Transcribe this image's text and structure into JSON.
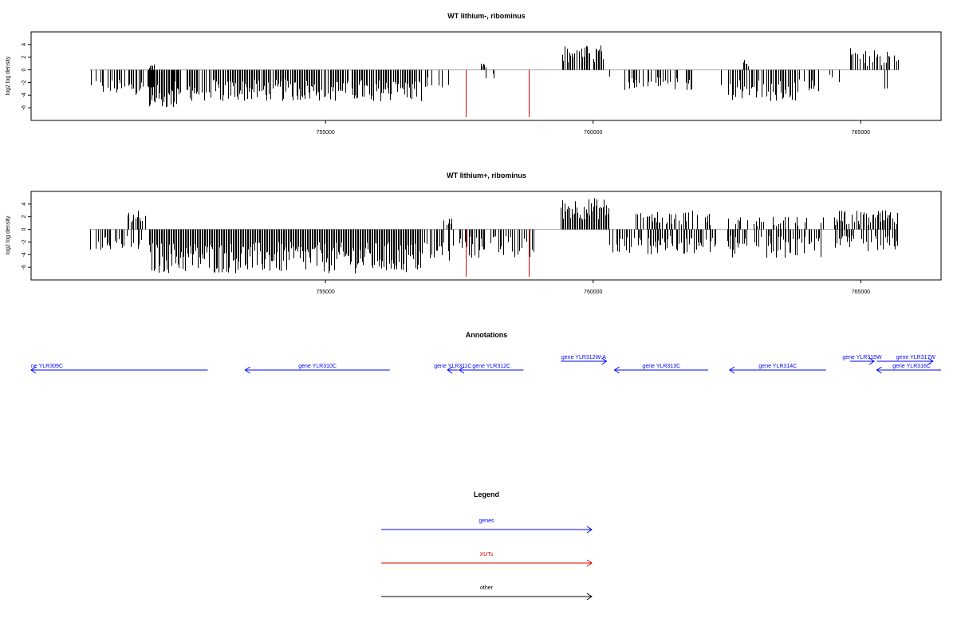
{
  "figure": {
    "panels": [
      {
        "title": "WT lithium-, ribominus",
        "ylabel": "log2 log density"
      },
      {
        "title": "WT lithium+, ribominus",
        "ylabel": "log2 log density"
      }
    ],
    "annotations_title": "Annotations",
    "legend_title": "Legend",
    "legend_entries": [
      {
        "label": "genes",
        "color": "#0000ff"
      },
      {
        "label": "XUTs",
        "color": "#dd0000"
      },
      {
        "label": "other",
        "color": "#000000"
      }
    ]
  },
  "chart_data": [
    {
      "type": "bar",
      "title": "WT lithium-, ribominus",
      "xlabel": "",
      "ylabel": "log2 log density",
      "xlim": [
        749500,
        766500
      ],
      "ylim": [
        -8,
        6
      ],
      "x_ticks": [
        755000,
        760000,
        765000
      ],
      "x_tick_labels": [
        "755000",
        "760000",
        "765000"
      ],
      "y_ticks": [
        -6,
        -4,
        -2,
        0,
        2,
        4
      ],
      "y_tick_labels": [
        "-6",
        "-4",
        "-2",
        "0",
        "2",
        "4"
      ],
      "baseline": {
        "from": 750600,
        "to": 765700,
        "y": 0
      },
      "xut_markers": [
        {
          "x": 757620,
          "value": -7.5
        },
        {
          "x": 758800,
          "value": -7.5
        }
      ],
      "segments": [
        {
          "from": 750600,
          "to": 752400,
          "density": 0.55,
          "min": -4,
          "max": -1.5
        },
        {
          "from": 751700,
          "to": 751800,
          "density": 1.0,
          "min": 0.3,
          "max": 0.9
        },
        {
          "from": 751700,
          "to": 752300,
          "density": 0.9,
          "min": -6.2,
          "max": -3
        },
        {
          "from": 752400,
          "to": 756800,
          "density": 0.85,
          "min": -5,
          "max": -1.5
        },
        {
          "from": 756800,
          "to": 757300,
          "density": 0.35,
          "min": -3,
          "max": -1
        },
        {
          "from": 757900,
          "to": 758400,
          "density": 0.2,
          "min": -3,
          "max": -0.5
        },
        {
          "from": 757900,
          "to": 758000,
          "density": 1.0,
          "min": 0.3,
          "max": 1
        },
        {
          "from": 759400,
          "to": 760200,
          "density": 0.8,
          "min": 1,
          "max": 4
        },
        {
          "from": 760300,
          "to": 761900,
          "density": 0.4,
          "min": -3.2,
          "max": -1
        },
        {
          "from": 762300,
          "to": 762400,
          "density": 0.4,
          "min": -2.5,
          "max": -1
        },
        {
          "from": 762500,
          "to": 764200,
          "density": 0.7,
          "min": -5,
          "max": -1.5
        },
        {
          "from": 762800,
          "to": 762900,
          "density": 1.0,
          "min": 0.5,
          "max": 1.6
        },
        {
          "from": 764300,
          "to": 764600,
          "density": 0.2,
          "min": -2,
          "max": -0.5
        },
        {
          "from": 764800,
          "to": 765700,
          "density": 0.6,
          "min": 0.5,
          "max": 3.5
        },
        {
          "from": 765400,
          "to": 765600,
          "density": 0.5,
          "min": -3,
          "max": -1
        }
      ]
    },
    {
      "type": "bar",
      "title": "WT lithium+, ribominus",
      "xlabel": "",
      "ylabel": "log2 log density",
      "xlim": [
        749500,
        766500
      ],
      "ylim": [
        -8,
        6
      ],
      "x_ticks": [
        755000,
        760000,
        765000
      ],
      "x_tick_labels": [
        "755000",
        "760000",
        "765000"
      ],
      "y_ticks": [
        -6,
        -4,
        -2,
        0,
        2,
        4
      ],
      "y_tick_labels": [
        "-6",
        "-4",
        "-2",
        "0",
        "2",
        "4"
      ],
      "baseline": {
        "from": 750600,
        "to": 765700,
        "y": 0
      },
      "xut_markers": [
        {
          "x": 757620,
          "value": -7.5
        },
        {
          "x": 758800,
          "value": -7.5
        }
      ],
      "segments": [
        {
          "from": 750600,
          "to": 751600,
          "density": 0.5,
          "min": -3.5,
          "max": -1
        },
        {
          "from": 751300,
          "to": 751700,
          "density": 0.8,
          "min": 1,
          "max": 3
        },
        {
          "from": 751700,
          "to": 756800,
          "density": 1.0,
          "min": -7,
          "max": -2
        },
        {
          "from": 756800,
          "to": 757400,
          "density": 0.7,
          "min": -5,
          "max": -1.5
        },
        {
          "from": 757200,
          "to": 757400,
          "density": 0.5,
          "min": 0.5,
          "max": 2
        },
        {
          "from": 757500,
          "to": 758900,
          "density": 0.6,
          "min": -4.5,
          "max": -1
        },
        {
          "from": 759400,
          "to": 760300,
          "density": 1.0,
          "min": 1.5,
          "max": 5
        },
        {
          "from": 760300,
          "to": 762300,
          "density": 0.7,
          "min": -4,
          "max": -1
        },
        {
          "from": 760800,
          "to": 762200,
          "density": 0.5,
          "min": 0.5,
          "max": 3
        },
        {
          "from": 762500,
          "to": 764300,
          "density": 0.65,
          "min": -4.5,
          "max": -1
        },
        {
          "from": 762500,
          "to": 764300,
          "density": 0.35,
          "min": 0.5,
          "max": 2
        },
        {
          "from": 764500,
          "to": 765700,
          "density": 0.8,
          "min": 0.5,
          "max": 3
        },
        {
          "from": 764500,
          "to": 765700,
          "density": 0.6,
          "min": -3.5,
          "max": -1
        }
      ]
    },
    {
      "type": "annotation-track",
      "title": "Annotations",
      "genes": [
        {
          "label": "ne YLR309C",
          "from": 749500,
          "to": 752800,
          "strand": "-"
        },
        {
          "label": "gene YLR310C",
          "from": 753500,
          "to": 756200,
          "strand": "-"
        },
        {
          "label": "gene YLR311C",
          "from": 757280,
          "to": 757480,
          "strand": "-"
        },
        {
          "label": "gene YLR312C",
          "from": 757500,
          "to": 758700,
          "strand": "-"
        },
        {
          "label": "gene YLR312W-A",
          "from": 759400,
          "to": 760250,
          "strand": "+"
        },
        {
          "label": "gene YLR313C",
          "from": 760400,
          "to": 762150,
          "strand": "-"
        },
        {
          "label": "gene YLR314C",
          "from": 762550,
          "to": 764350,
          "strand": "-"
        },
        {
          "label": "gene YLR315W",
          "from": 764800,
          "to": 765250,
          "strand": "+"
        },
        {
          "label": "gene YLR317W",
          "from": 765300,
          "to": 766350,
          "strand": "+"
        },
        {
          "label": "gene YLR316C",
          "from": 765300,
          "to": 766500,
          "strand": "-"
        }
      ]
    }
  ]
}
